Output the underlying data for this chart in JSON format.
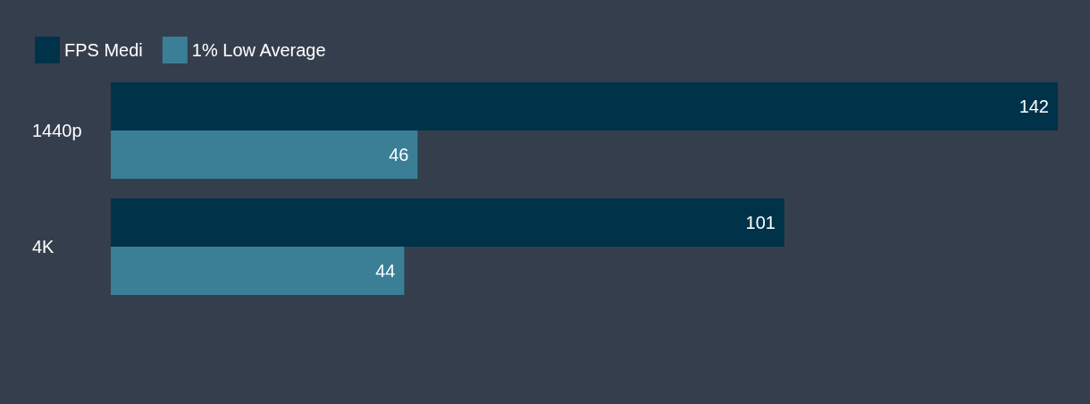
{
  "chart_data": {
    "type": "bar",
    "orientation": "horizontal",
    "categories": [
      "1440p",
      "4K"
    ],
    "series": [
      {
        "name": "FPS Medi",
        "color": "#003249",
        "values": [
          142,
          101
        ]
      },
      {
        "name": "1% Low Average",
        "color": "#3a7f96",
        "values": [
          46,
          44
        ]
      }
    ],
    "data_labels": true,
    "legend": "top left"
  }
}
